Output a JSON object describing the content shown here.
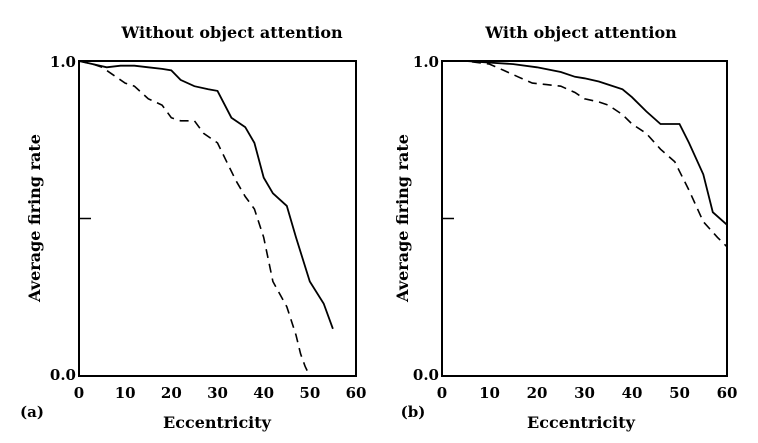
{
  "chart_data": [
    {
      "type": "line",
      "panel_label": "(a)",
      "title": "Without object attention",
      "xlabel": "Eccentricity",
      "ylabel": "Average firing rate",
      "xlim": [
        0,
        60
      ],
      "ylim": [
        0,
        1
      ],
      "x_ticks": [
        "0",
        "10",
        "20",
        "30",
        "40",
        "50",
        "60"
      ],
      "y_ticks": [
        "0.0",
        "1.0"
      ],
      "grid": false,
      "series": [
        {
          "style": "solid",
          "x": [
            0,
            3,
            6,
            9,
            12,
            15,
            18,
            20,
            22,
            25,
            28,
            30,
            33,
            36,
            38,
            40,
            42,
            45,
            47,
            50,
            53,
            55
          ],
          "y": [
            1.0,
            0.99,
            0.98,
            0.985,
            0.985,
            0.98,
            0.975,
            0.97,
            0.94,
            0.92,
            0.91,
            0.905,
            0.82,
            0.79,
            0.74,
            0.63,
            0.58,
            0.54,
            0.44,
            0.3,
            0.23,
            0.15
          ]
        },
        {
          "style": "dashed",
          "x": [
            0,
            3,
            5,
            8,
            10,
            12,
            15,
            18,
            20,
            22,
            25,
            27,
            30,
            32,
            34,
            36,
            38,
            40,
            42,
            45,
            47,
            48,
            49,
            50
          ],
          "y": [
            1.0,
            0.99,
            0.98,
            0.95,
            0.93,
            0.92,
            0.88,
            0.86,
            0.82,
            0.81,
            0.81,
            0.77,
            0.74,
            0.68,
            0.62,
            0.57,
            0.53,
            0.44,
            0.3,
            0.22,
            0.13,
            0.07,
            0.03,
            0.0
          ]
        }
      ]
    },
    {
      "type": "line",
      "panel_label": "(b)",
      "title": "With object attention",
      "xlabel": "Eccentricity",
      "ylabel": "Average firing rate",
      "xlim": [
        0,
        60
      ],
      "ylim": [
        0,
        1
      ],
      "x_ticks": [
        "0",
        "10",
        "20",
        "30",
        "40",
        "50",
        "60"
      ],
      "y_ticks": [
        "0.0",
        "1.0"
      ],
      "grid": false,
      "series": [
        {
          "style": "solid",
          "x": [
            0,
            5,
            10,
            15,
            20,
            25,
            28,
            30,
            33,
            35,
            38,
            40,
            43,
            46,
            48,
            50,
            52,
            55,
            57,
            60
          ],
          "y": [
            1.0,
            1.0,
            0.995,
            0.99,
            0.98,
            0.965,
            0.95,
            0.945,
            0.935,
            0.925,
            0.91,
            0.885,
            0.84,
            0.8,
            0.8,
            0.8,
            0.74,
            0.64,
            0.52,
            0.48
          ]
        },
        {
          "style": "dashed",
          "x": [
            0,
            5,
            10,
            13,
            16,
            19,
            22,
            25,
            28,
            30,
            33,
            35,
            38,
            40,
            43,
            46,
            49,
            50,
            52,
            55,
            58,
            60
          ],
          "y": [
            1.0,
            1.0,
            0.99,
            0.97,
            0.95,
            0.93,
            0.925,
            0.92,
            0.9,
            0.88,
            0.87,
            0.86,
            0.83,
            0.8,
            0.77,
            0.72,
            0.68,
            0.65,
            0.59,
            0.49,
            0.44,
            0.41
          ]
        }
      ]
    }
  ]
}
